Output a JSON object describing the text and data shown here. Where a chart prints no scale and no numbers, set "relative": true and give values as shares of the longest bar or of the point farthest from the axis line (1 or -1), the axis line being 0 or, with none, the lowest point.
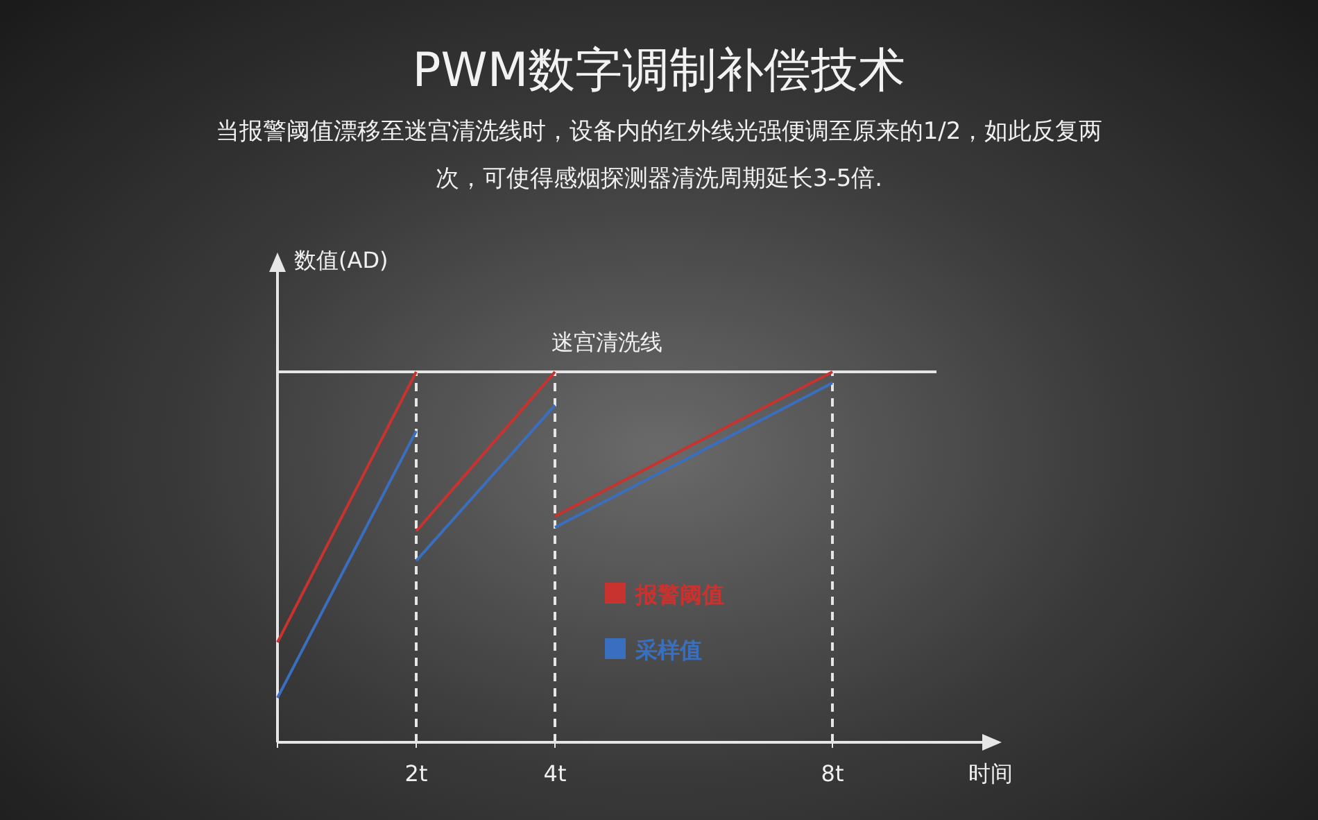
{
  "chart_data": {
    "type": "line",
    "title": "PWM数字调制补偿技术",
    "subtitle": "当报警阈值漂移至迷宫清洗线时，设备内的红外线光强便调至原来的1/2，如此反复两次，可使得感烟探测器清洗周期延长3-5倍.",
    "xlabel": "时间",
    "ylabel": "数值(AD)",
    "relative": true,
    "xlim": [
      0,
      10.4
    ],
    "xticks": [
      {
        "value": 0,
        "label": null
      },
      {
        "value": 2,
        "label": "2t"
      },
      {
        "value": 4,
        "label": "4t"
      },
      {
        "value": 8,
        "label": "8t"
      }
    ],
    "tick_labels": "x",
    "legend": "bottom",
    "marker": "none",
    "line_style": "solid",
    "series": [
      {
        "name": "报警阈值",
        "color": "#c8332f",
        "x": [
          0,
          2
        ],
        "values": [
          0.27,
          1
        ]
      },
      {
        "color": "#c8332f",
        "x": [
          2,
          4
        ],
        "values": [
          0.57,
          1
        ]
      },
      {
        "color": "#c8332f",
        "x": [
          4,
          8
        ],
        "values": [
          0.61,
          1
        ]
      },
      {
        "name": "采样值",
        "color": "#3a6fc0",
        "x": [
          0,
          2
        ],
        "values": [
          0.12,
          0.84
        ]
      },
      {
        "color": "#3a6fc0",
        "x": [
          2,
          4
        ],
        "values": [
          0.49,
          0.91
        ]
      },
      {
        "color": "#3a6fc0",
        "x": [
          4,
          8
        ],
        "values": [
          0.58,
          0.97
        ]
      }
    ],
    "ref_lines": [
      {
        "axis": "y",
        "value": 1,
        "label": "迷宫清洗线",
        "color": "#e6e6e6",
        "line_style": "solid"
      },
      {
        "axis": "x",
        "value": 2,
        "color": "#e6e6e6",
        "line_style": "dashed"
      },
      {
        "axis": "x",
        "value": 4,
        "color": "#e6e6e6",
        "line_style": "dashed"
      },
      {
        "axis": "x",
        "value": 8,
        "color": "#e6e6e6",
        "line_style": "dashed"
      }
    ]
  }
}
